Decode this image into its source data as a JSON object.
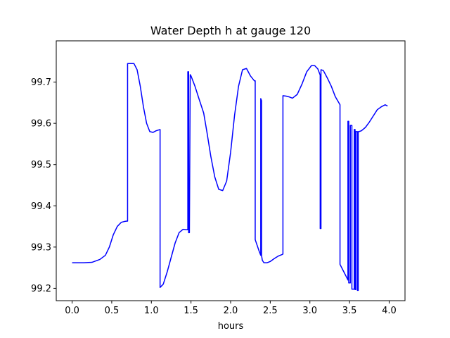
{
  "chart_data": {
    "type": "line",
    "title": "Water Depth h at gauge 120",
    "xlabel": "hours",
    "ylabel": "",
    "xlim": [
      -0.2,
      4.2
    ],
    "ylim": [
      99.17,
      99.8
    ],
    "xticks": [
      0.0,
      0.5,
      1.0,
      1.5,
      2.0,
      2.5,
      3.0,
      3.5,
      4.0
    ],
    "xtick_labels": [
      "0.0",
      "0.5",
      "1.0",
      "1.5",
      "2.0",
      "2.5",
      "3.0",
      "3.5",
      "4.0"
    ],
    "yticks": [
      99.2,
      99.3,
      99.4,
      99.5,
      99.6,
      99.7
    ],
    "ytick_labels": [
      "99.2",
      "99.3",
      "99.4",
      "99.5",
      "99.6",
      "99.7"
    ],
    "grid": false,
    "line_color": "#0000ff",
    "series": [
      {
        "x": [
          0.0,
          0.15,
          0.25,
          0.35,
          0.42,
          0.47,
          0.52,
          0.57,
          0.62,
          0.66,
          0.69,
          0.7,
          0.7,
          0.74,
          0.78,
          0.82,
          0.86,
          0.9,
          0.94,
          0.98,
          1.02,
          1.06,
          1.11,
          1.11,
          1.15,
          1.2,
          1.25,
          1.3,
          1.35,
          1.4,
          1.44,
          1.46,
          1.46,
          1.47,
          1.47,
          1.48,
          1.49,
          1.49,
          1.5,
          1.55,
          1.6,
          1.66,
          1.7,
          1.75,
          1.8,
          1.85,
          1.9,
          1.95,
          2.0,
          2.05,
          2.1,
          2.15,
          2.2,
          2.25,
          2.3,
          2.31,
          2.31,
          2.36,
          2.38,
          2.38,
          2.39,
          2.39,
          2.4,
          2.42,
          2.46,
          2.5,
          2.55,
          2.6,
          2.65,
          2.66,
          2.66,
          2.7,
          2.74,
          2.78,
          2.84,
          2.9,
          2.96,
          3.02,
          3.06,
          3.1,
          3.13,
          3.13,
          3.14,
          3.14,
          3.17,
          3.22,
          3.27,
          3.32,
          3.38,
          3.38,
          3.42,
          3.46,
          3.48,
          3.48,
          3.49,
          3.49,
          3.51,
          3.51,
          3.53,
          3.53,
          3.56,
          3.56,
          3.57,
          3.57,
          3.58,
          3.58,
          3.6,
          3.6,
          3.61,
          3.61,
          3.62,
          3.62,
          3.65,
          3.7,
          3.75,
          3.8,
          3.85,
          3.9,
          3.95,
          3.98
        ],
        "y": [
          99.262,
          99.262,
          99.263,
          99.27,
          99.28,
          99.3,
          99.33,
          99.35,
          99.36,
          99.362,
          99.363,
          99.363,
          99.745,
          99.745,
          99.745,
          99.73,
          99.69,
          99.64,
          99.6,
          99.58,
          99.578,
          99.582,
          99.585,
          99.202,
          99.21,
          99.24,
          99.275,
          99.31,
          99.335,
          99.343,
          99.342,
          99.342,
          99.725,
          99.725,
          99.335,
          99.335,
          99.718,
          99.718,
          99.715,
          99.69,
          99.66,
          99.625,
          99.58,
          99.52,
          99.47,
          99.44,
          99.437,
          99.46,
          99.53,
          99.62,
          99.69,
          99.73,
          99.733,
          99.715,
          99.703,
          99.703,
          99.318,
          99.29,
          99.28,
          99.66,
          99.655,
          99.28,
          99.268,
          99.262,
          99.262,
          99.265,
          99.272,
          99.278,
          99.282,
          99.283,
          99.667,
          99.666,
          99.664,
          99.661,
          99.67,
          99.695,
          99.725,
          99.74,
          99.74,
          99.732,
          99.717,
          99.345,
          99.345,
          99.73,
          99.728,
          99.71,
          99.69,
          99.665,
          99.645,
          99.258,
          99.243,
          99.228,
          99.22,
          99.605,
          99.605,
          99.213,
          99.213,
          99.595,
          99.595,
          99.198,
          99.198,
          99.585,
          99.585,
          99.197,
          99.197,
          99.58,
          99.58,
          99.195,
          99.195,
          99.58,
          99.58,
          99.58,
          99.582,
          99.59,
          99.603,
          99.618,
          99.633,
          99.64,
          99.645,
          99.642
        ]
      }
    ]
  }
}
